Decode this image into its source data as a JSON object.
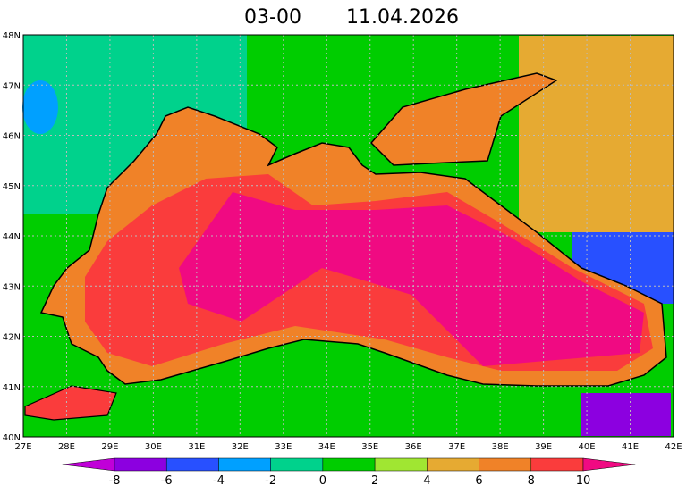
{
  "title": {
    "time": "03-00",
    "date": "11.04.2026"
  },
  "map": {
    "lon_ticks": [
      "27E",
      "28E",
      "29E",
      "30E",
      "31E",
      "32E",
      "33E",
      "34E",
      "35E",
      "36E",
      "37E",
      "38E",
      "39E",
      "40E",
      "41E",
      "42E"
    ],
    "lat_ticks": [
      "48N",
      "47N",
      "46N",
      "45N",
      "44N",
      "43N",
      "42N",
      "41N",
      "40N"
    ]
  },
  "colorbar": {
    "ticks": [
      -8,
      -6,
      -4,
      -2,
      0,
      2,
      4,
      6,
      8,
      10
    ],
    "colors": [
      "#c000d8",
      "#8c00e0",
      "#2850ff",
      "#00a0ff",
      "#00d28c",
      "#00cd00",
      "#a0e632",
      "#e6aa32",
      "#f08228",
      "#fa3c3c",
      "#f00a82"
    ]
  }
}
